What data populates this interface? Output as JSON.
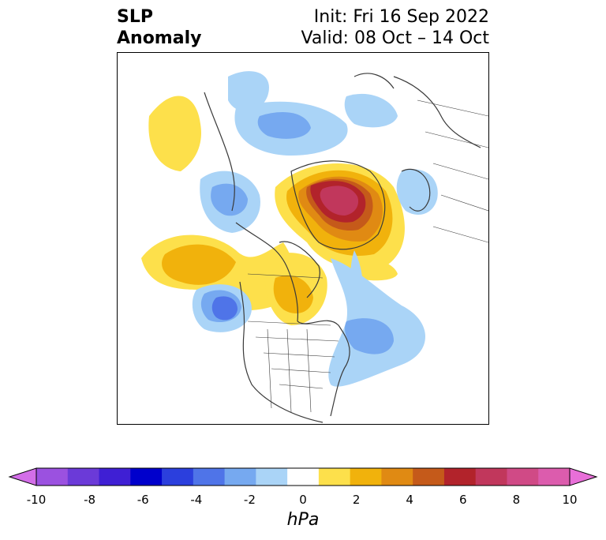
{
  "title": {
    "left_line1": "SLP",
    "left_line2": "Anomaly",
    "right_line1": "Init: Fri 16 Sep 2022",
    "right_line2": "Valid: 08 Oct – 14 Oct"
  },
  "colorbar": {
    "units": "hPa",
    "ticks": [
      "-10",
      "-8",
      "-6",
      "-4",
      "-2",
      "0",
      "2",
      "4",
      "6",
      "8",
      "10"
    ],
    "colors": [
      "#d36ee8",
      "#9b51e0",
      "#6b3ad8",
      "#3f1fd4",
      "#0000cc",
      "#2b3fdd",
      "#4f74e8",
      "#76a9f0",
      "#aad4f7",
      "#ffffff",
      "#fde04b",
      "#f1b20c",
      "#e08a13",
      "#c55a1a",
      "#b2232b",
      "#c1375c",
      "#d04a86",
      "#dc5cad",
      "#e86fd8"
    ]
  },
  "map": {
    "projection": "north-polar-stereographic",
    "fields": "sea-level-pressure-anomaly"
  }
}
